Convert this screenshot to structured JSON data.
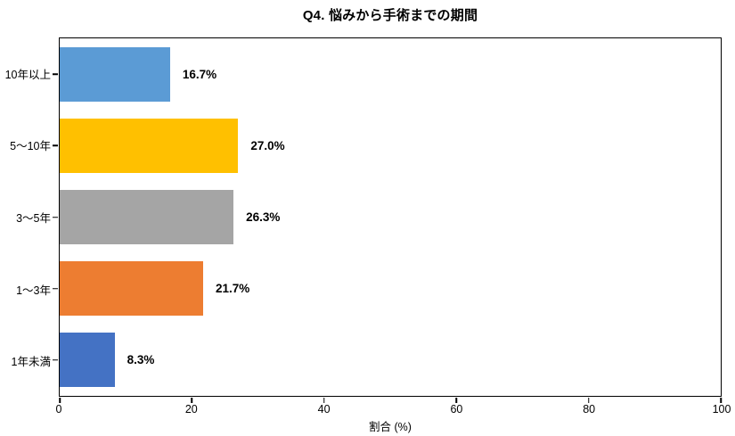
{
  "chart_data": {
    "type": "bar",
    "orientation": "horizontal",
    "title": "Q4. 悩みから手術までの期間",
    "xlabel": "割合 (%)",
    "ylabel": "",
    "categories_top_to_bottom": [
      "10年以上",
      "5〜10年",
      "3〜5年",
      "1〜3年",
      "1年未満"
    ],
    "values": [
      16.7,
      27.0,
      26.3,
      21.7,
      8.3
    ],
    "value_labels": [
      "16.7%",
      "27.0%",
      "26.3%",
      "21.7%",
      "8.3%"
    ],
    "bar_colors": [
      "#5B9BD5",
      "#FFC000",
      "#A5A5A5",
      "#ED7D31",
      "#4472C4"
    ],
    "xlim": [
      0,
      100
    ],
    "xticks": [
      0,
      20,
      40,
      60,
      80,
      100
    ],
    "grid": "off",
    "legend": "none",
    "plot_border_color": "#000000",
    "background_color": "#ffffff",
    "text_color": "#000000"
  }
}
